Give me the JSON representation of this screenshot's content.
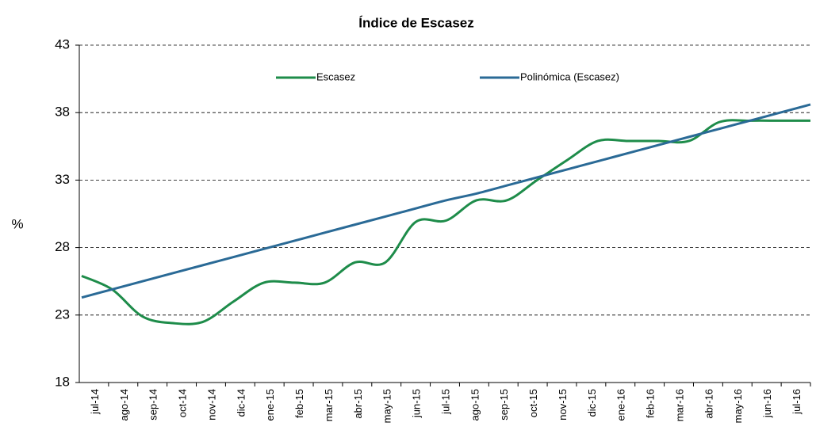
{
  "chart_data": {
    "type": "line",
    "title": "Índice de Escasez",
    "ylabel": "%",
    "categories": [
      "jul-14",
      "ago-14",
      "sep-14",
      "oct-14",
      "nov-14",
      "dic-14",
      "ene-15",
      "feb-15",
      "mar-15",
      "abr-15",
      "may-15",
      "jun-15",
      "jul-15",
      "ago-15",
      "sep-15",
      "oct-15",
      "nov-15",
      "dic-15",
      "ene-16",
      "feb-16",
      "mar-16",
      "abr-16",
      "may-16",
      "jun-16",
      "jul-16"
    ],
    "series": [
      {
        "name": "Escasez",
        "color": "#1e8c4a",
        "values": [
          25.9,
          24.9,
          22.9,
          22.4,
          22.5,
          24.0,
          25.4,
          25.4,
          25.4,
          26.9,
          26.9,
          29.9,
          30.0,
          31.5,
          31.5,
          33.0,
          34.5,
          35.9,
          35.9,
          35.9,
          35.9,
          37.3,
          37.4,
          37.4,
          37.4
        ]
      },
      {
        "name": "Polinómica (Escasez)",
        "color": "#2a6a96",
        "values": [
          24.3,
          24.9,
          25.5,
          26.1,
          26.7,
          27.3,
          27.9,
          28.5,
          29.1,
          29.7,
          30.3,
          30.9,
          31.5,
          32.0,
          32.6,
          33.2,
          33.8,
          34.4,
          35.0,
          35.6,
          36.2,
          36.8,
          37.4,
          38.0,
          38.6
        ]
      }
    ],
    "ylim": [
      18,
      43
    ],
    "yticks": [
      18,
      23,
      28,
      33,
      38,
      43
    ],
    "grid": true,
    "legend": "top"
  }
}
